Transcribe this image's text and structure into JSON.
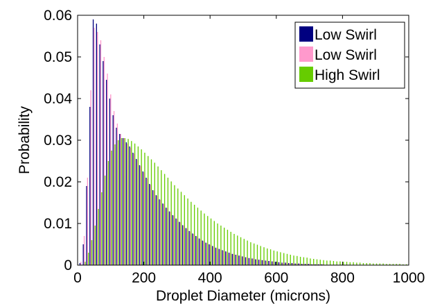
{
  "chart_data": {
    "type": "bar",
    "xlabel": "Droplet Diameter (microns)",
    "ylabel": "Probability",
    "xlim": [
      0,
      1000
    ],
    "ylim": [
      0,
      0.06
    ],
    "xticks": [
      0,
      200,
      400,
      600,
      800,
      1000
    ],
    "yticks": [
      0,
      0.01,
      0.02,
      0.03,
      0.04,
      0.05,
      0.06
    ],
    "xtick_labels": [
      "0",
      "200",
      "400",
      "600",
      "800",
      "1000"
    ],
    "ytick_labels": [
      "0",
      "0.01",
      "0.02",
      "0.03",
      "0.04",
      "0.05",
      "0.06"
    ],
    "grid": false,
    "legend_position": "top-right",
    "series": [
      {
        "name": "Low Swirl",
        "color": "#000080",
        "x": [
          10,
          20,
          30,
          40,
          50,
          60,
          70,
          80,
          90,
          100,
          110,
          120,
          130,
          140,
          150,
          160,
          170,
          180,
          190,
          200,
          210,
          220,
          230,
          240,
          250,
          260,
          270,
          280,
          290,
          300,
          310,
          320,
          330,
          340,
          350,
          360,
          370,
          380,
          390,
          400,
          410,
          420,
          430,
          440,
          450,
          460,
          470,
          480,
          490,
          500,
          510,
          520,
          530,
          540,
          550,
          560,
          570,
          580,
          590,
          600,
          610,
          620,
          630,
          640,
          650,
          660,
          670,
          680,
          690,
          700,
          710,
          720,
          730,
          740,
          750,
          760,
          770,
          780,
          790,
          800,
          810,
          820,
          830,
          840,
          850,
          860,
          870,
          880,
          890,
          900,
          910,
          920,
          930,
          940,
          950,
          960,
          970,
          980,
          990
        ],
        "values": [
          0.0005,
          0.005,
          0.019,
          0.038,
          0.059,
          0.058,
          0.053,
          0.049,
          0.0445,
          0.04,
          0.036,
          0.033,
          0.0315,
          0.0305,
          0.0295,
          0.0285,
          0.027,
          0.0255,
          0.024,
          0.0225,
          0.021,
          0.0195,
          0.018,
          0.0168,
          0.0158,
          0.0148,
          0.0138,
          0.0129,
          0.012,
          0.0112,
          0.0104,
          0.0096,
          0.0089,
          0.0082,
          0.0076,
          0.007,
          0.0064,
          0.0059,
          0.0054,
          0.005,
          0.0046,
          0.0042,
          0.0039,
          0.0036,
          0.0033,
          0.003,
          0.0027,
          0.0025,
          0.0023,
          0.0021,
          0.0019,
          0.0017,
          0.0016,
          0.0014,
          0.0013,
          0.0012,
          0.0011,
          0.001,
          0.0009,
          0.0008,
          0.0007,
          0.0006,
          0.0006,
          0.0005,
          0.0005,
          0.0004,
          0.0004,
          0.0003,
          0.0003,
          0.0003,
          0.0002,
          0.0002,
          0.0002,
          0.0002,
          0.0001,
          0.0001,
          0.0001,
          0.0001,
          0.0001,
          0.0001,
          0.0001,
          0.0001,
          5e-05,
          5e-05,
          5e-05,
          5e-05,
          5e-05,
          5e-05,
          5e-05,
          5e-05,
          5e-05,
          5e-05,
          5e-05,
          5e-05,
          5e-05,
          5e-05,
          5e-05,
          5e-05,
          5e-05
        ]
      },
      {
        "name": "Low Swirl",
        "color": "#ff99cc",
        "x": [
          10,
          20,
          30,
          40,
          50,
          60,
          70,
          80,
          90,
          100,
          110,
          120,
          130,
          140,
          150,
          160,
          170,
          180,
          190,
          200,
          210,
          220,
          230,
          240,
          250,
          260,
          270,
          280,
          290,
          300,
          310,
          320,
          330,
          340,
          350,
          360,
          370,
          380,
          390,
          400,
          410,
          420,
          430,
          440,
          450,
          460,
          470,
          480,
          490,
          500,
          510,
          520,
          530,
          540,
          550,
          560,
          570,
          580,
          590,
          600,
          610,
          620,
          630,
          640,
          650,
          660,
          670,
          680,
          690,
          700,
          710,
          720,
          730,
          740,
          750,
          760,
          770,
          780,
          790,
          800,
          810,
          820,
          830,
          840,
          850,
          860,
          870,
          880,
          890,
          900,
          910,
          920,
          930,
          940,
          950,
          960,
          970,
          980,
          990
        ],
        "values": [
          0.0008,
          0.007,
          0.021,
          0.042,
          0.057,
          0.056,
          0.054,
          0.05,
          0.046,
          0.041,
          0.037,
          0.034,
          0.0315,
          0.0305,
          0.0292,
          0.0282,
          0.0268,
          0.0253,
          0.0238,
          0.0223,
          0.0208,
          0.0193,
          0.0179,
          0.0167,
          0.0157,
          0.0147,
          0.0137,
          0.0128,
          0.0119,
          0.0111,
          0.0103,
          0.0095,
          0.0088,
          0.0081,
          0.0075,
          0.0069,
          0.0063,
          0.0058,
          0.0053,
          0.0049,
          0.0045,
          0.0041,
          0.0038,
          0.0035,
          0.0032,
          0.0029,
          0.0027,
          0.0025,
          0.0023,
          0.0021,
          0.0019,
          0.0017,
          0.0016,
          0.0014,
          0.0013,
          0.0012,
          0.0011,
          0.001,
          0.0009,
          0.0008,
          0.0007,
          0.0006,
          0.0006,
          0.0005,
          0.0005,
          0.0004,
          0.0004,
          0.0003,
          0.0003,
          0.0003,
          0.0002,
          0.0002,
          0.0002,
          0.0002,
          0.0001,
          0.0001,
          0.0001,
          0.0001,
          0.0001,
          0.0001,
          0.0001,
          0.0001,
          5e-05,
          5e-05,
          5e-05,
          5e-05,
          5e-05,
          5e-05,
          5e-05,
          5e-05,
          5e-05,
          5e-05,
          5e-05,
          5e-05,
          5e-05,
          5e-05,
          5e-05,
          5e-05,
          5e-05
        ]
      },
      {
        "name": "High Swirl",
        "color": "#66cc00",
        "x": [
          10,
          20,
          30,
          40,
          50,
          60,
          70,
          80,
          90,
          100,
          110,
          120,
          130,
          140,
          150,
          160,
          170,
          180,
          190,
          200,
          210,
          220,
          230,
          240,
          250,
          260,
          270,
          280,
          290,
          300,
          310,
          320,
          330,
          340,
          350,
          360,
          370,
          380,
          390,
          400,
          410,
          420,
          430,
          440,
          450,
          460,
          470,
          480,
          490,
          500,
          510,
          520,
          530,
          540,
          550,
          560,
          570,
          580,
          590,
          600,
          610,
          620,
          630,
          640,
          650,
          660,
          670,
          680,
          690,
          700,
          710,
          720,
          730,
          740,
          750,
          760,
          770,
          780,
          790,
          800,
          810,
          820,
          830,
          840,
          850,
          860,
          870,
          880,
          890,
          900,
          910,
          920,
          930,
          940,
          950,
          960,
          970,
          980,
          990
        ],
        "values": [
          0.0001,
          0.0008,
          0.003,
          0.006,
          0.0095,
          0.0135,
          0.0175,
          0.0215,
          0.025,
          0.0275,
          0.029,
          0.03,
          0.0305,
          0.0305,
          0.0303,
          0.0298,
          0.0292,
          0.0285,
          0.0278,
          0.027,
          0.0262,
          0.0254,
          0.0246,
          0.0237,
          0.0228,
          0.0219,
          0.021,
          0.0201,
          0.0192,
          0.0184,
          0.0176,
          0.0168,
          0.016,
          0.0152,
          0.0145,
          0.0138,
          0.0131,
          0.0124,
          0.0118,
          0.0112,
          0.0106,
          0.01,
          0.0095,
          0.009,
          0.0085,
          0.008,
          0.0075,
          0.0071,
          0.0067,
          0.0063,
          0.0059,
          0.0055,
          0.0052,
          0.0049,
          0.0046,
          0.0043,
          0.004,
          0.0038,
          0.0035,
          0.0033,
          0.0031,
          0.0029,
          0.0027,
          0.0025,
          0.0023,
          0.0022,
          0.002,
          0.0019,
          0.0018,
          0.0016,
          0.0015,
          0.0014,
          0.0013,
          0.0012,
          0.0011,
          0.0011,
          0.001,
          0.0009,
          0.0009,
          0.0008,
          0.0008,
          0.0007,
          0.0007,
          0.0006,
          0.0006,
          0.0005,
          0.0005,
          0.0005,
          0.0004,
          0.0004,
          0.0004,
          0.0004,
          0.0003,
          0.0003,
          0.0003,
          0.0003,
          0.0003,
          0.0002,
          0.0002
        ]
      }
    ]
  }
}
